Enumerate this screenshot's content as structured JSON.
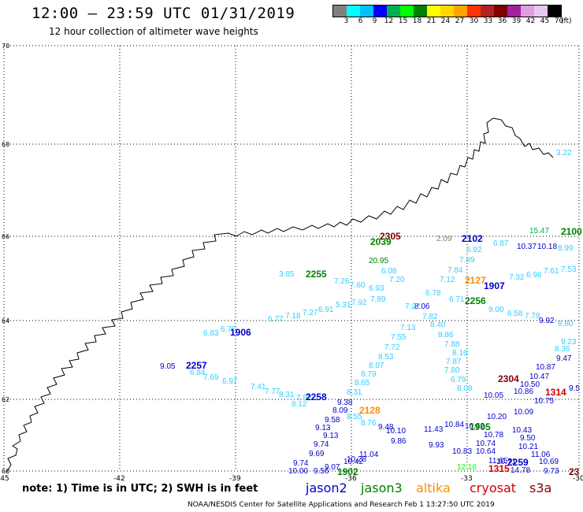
{
  "header": {
    "title": "12:00 – 23:59 UTC 01/31/2019",
    "subtitle": "12 hour collection of altimeter wave heights"
  },
  "colorbar": {
    "colors": [
      "#808080",
      "#00ffff",
      "#00bfff",
      "#0000ff",
      "#00b050",
      "#00ff00",
      "#008000",
      "#ffff00",
      "#ffd700",
      "#ffa500",
      "#ff3300",
      "#b22222",
      "#800000",
      "#a020a0",
      "#dda0dd",
      "#e6c8f0",
      "#000000"
    ],
    "labels": [
      "3",
      "6",
      "9",
      "12",
      "15",
      "18",
      "21",
      "24",
      "27",
      "30",
      "33",
      "36",
      "39",
      "42",
      "45",
      "70"
    ],
    "unit": "(ft)"
  },
  "map": {
    "lat_labels": [
      "70",
      "68",
      "66",
      "64",
      "62",
      "60"
    ],
    "lon_labels": [
      "-45",
      "-42",
      "-39",
      "-36",
      "-33",
      "-30"
    ],
    "coast_color": "#000000",
    "grid_color": "#000000"
  },
  "passes": [
    {
      "label": "1906",
      "color": "#0000cc"
    },
    {
      "label": "2257",
      "color": "#0000cc"
    },
    {
      "label": "2258",
      "color": "#0000cc"
    },
    {
      "label": "2255",
      "color": "#008000"
    },
    {
      "label": "2128",
      "color": "#ff8c00"
    },
    {
      "label": "1905",
      "color": "#008000"
    },
    {
      "label": "1902",
      "color": "#008000"
    },
    {
      "label": "2102",
      "color": "#0000cc"
    },
    {
      "label": "2305",
      "color": "#800000"
    },
    {
      "label": "2039",
      "color": "#008000"
    },
    {
      "label": "2127",
      "color": "#ff8c00"
    },
    {
      "label": "1907",
      "color": "#0000cc"
    },
    {
      "label": "2256",
      "color": "#008000"
    },
    {
      "label": "2304",
      "color": "#800000"
    },
    {
      "label": "1314",
      "color": "#cc0000"
    },
    {
      "label": "2259",
      "color": "#0000cc"
    },
    {
      "label": "1315",
      "color": "#cc0000"
    },
    {
      "label": "2100",
      "color": "#008000"
    },
    {
      "label": "23",
      "color": "#800000"
    }
  ],
  "values": [
    {
      "v": "3.22",
      "c": "#33ccff"
    },
    {
      "v": "15.47",
      "c": "#00b050"
    },
    {
      "v": "10.37",
      "c": "#0000cc"
    },
    {
      "v": "10.18",
      "c": "#0000cc"
    },
    {
      "v": "8.99",
      "c": "#33ccff"
    },
    {
      "v": "2.09",
      "c": "#808080"
    },
    {
      "v": "6.92",
      "c": "#33ccff"
    },
    {
      "v": "6.87",
      "c": "#33ccff"
    },
    {
      "v": "20.95",
      "c": "#008000"
    },
    {
      "v": "7.89",
      "c": "#33ccff"
    },
    {
      "v": "6.08",
      "c": "#33ccff"
    },
    {
      "v": "7.84",
      "c": "#33ccff"
    },
    {
      "v": "3.85",
      "c": "#33ccff"
    },
    {
      "v": "7.26",
      "c": "#33ccff"
    },
    {
      "v": "7.20",
      "c": "#33ccff"
    },
    {
      "v": "7.12",
      "c": "#33ccff"
    },
    {
      "v": "7.60",
      "c": "#33ccff"
    },
    {
      "v": "6.93",
      "c": "#33ccff"
    },
    {
      "v": "7.32",
      "c": "#33ccff"
    },
    {
      "v": "6.98",
      "c": "#33ccff"
    },
    {
      "v": "7.61",
      "c": "#33ccff"
    },
    {
      "v": "7.53",
      "c": "#33ccff"
    },
    {
      "v": "7.92",
      "c": "#33ccff"
    },
    {
      "v": "7.89",
      "c": "#33ccff"
    },
    {
      "v": "6.78",
      "c": "#33ccff"
    },
    {
      "v": "5.31",
      "c": "#33ccff"
    },
    {
      "v": "6.91",
      "c": "#33ccff"
    },
    {
      "v": "8.06",
      "c": "#0000cc"
    },
    {
      "v": "6.71",
      "c": "#33ccff"
    },
    {
      "v": "9.00",
      "c": "#33ccff"
    },
    {
      "v": "6.58",
      "c": "#33ccff"
    },
    {
      "v": "7.78",
      "c": "#33ccff"
    },
    {
      "v": "9.92",
      "c": "#0000cc"
    },
    {
      "v": "7.27",
      "c": "#33ccff"
    },
    {
      "v": "7.18",
      "c": "#33ccff"
    },
    {
      "v": "6.77",
      "c": "#33ccff"
    },
    {
      "v": "7.27",
      "c": "#33ccff"
    },
    {
      "v": "7.82",
      "c": "#33ccff"
    },
    {
      "v": "8.80",
      "c": "#33ccff"
    },
    {
      "v": "6.83",
      "c": "#33ccff"
    },
    {
      "v": "6.70",
      "c": "#33ccff"
    },
    {
      "v": "7.13",
      "c": "#33ccff"
    },
    {
      "v": "8.40",
      "c": "#33ccff"
    },
    {
      "v": "7.55",
      "c": "#33ccff"
    },
    {
      "v": "8.86",
      "c": "#33ccff"
    },
    {
      "v": "9.23",
      "c": "#33ccff"
    },
    {
      "v": "7.72",
      "c": "#33ccff"
    },
    {
      "v": "7.88",
      "c": "#33ccff"
    },
    {
      "v": "8.36",
      "c": "#33ccff"
    },
    {
      "v": "8.53",
      "c": "#33ccff"
    },
    {
      "v": "8.16",
      "c": "#33ccff"
    },
    {
      "v": "9.47",
      "c": "#0000cc"
    },
    {
      "v": "9.05",
      "c": "#0000cc"
    },
    {
      "v": "8.07",
      "c": "#33ccff"
    },
    {
      "v": "7.87",
      "c": "#33ccff"
    },
    {
      "v": "10.87",
      "c": "#0000cc"
    },
    {
      "v": "6.84",
      "c": "#33ccff"
    },
    {
      "v": "8.79",
      "c": "#33ccff"
    },
    {
      "v": "7.80",
      "c": "#33ccff"
    },
    {
      "v": "7.69",
      "c": "#33ccff"
    },
    {
      "v": "6.79",
      "c": "#33ccff"
    },
    {
      "v": "10.47",
      "c": "#0000cc"
    },
    {
      "v": "6.97",
      "c": "#33ccff"
    },
    {
      "v": "8.65",
      "c": "#33ccff"
    },
    {
      "v": "8.08",
      "c": "#33ccff"
    },
    {
      "v": "10.50",
      "c": "#0000cc"
    },
    {
      "v": "8.31",
      "c": "#33ccff"
    },
    {
      "v": "7.41",
      "c": "#33ccff"
    },
    {
      "v": "7.77",
      "c": "#33ccff"
    },
    {
      "v": "8.31",
      "c": "#33ccff"
    },
    {
      "v": "10.05",
      "c": "#0000cc"
    },
    {
      "v": "10.86",
      "c": "#0000cc"
    },
    {
      "v": "7.82",
      "c": "#33ccff"
    },
    {
      "v": "9.38",
      "c": "#0000cc"
    },
    {
      "v": "10.75",
      "c": "#0000cc"
    },
    {
      "v": "9.5",
      "c": "#0000cc"
    },
    {
      "v": "8.12",
      "c": "#33ccff"
    },
    {
      "v": "8.09",
      "c": "#0000cc"
    },
    {
      "v": "9.58",
      "c": "#0000cc"
    },
    {
      "v": "8.55",
      "c": "#33ccff"
    },
    {
      "v": "8.76",
      "c": "#33ccff"
    },
    {
      "v": "9.13",
      "c": "#0000cc"
    },
    {
      "v": "9.48",
      "c": "#0000cc"
    },
    {
      "v": "10.62",
      "c": "#0000cc"
    },
    {
      "v": "10.84",
      "c": "#0000cc"
    },
    {
      "v": "10.20",
      "c": "#0000cc"
    },
    {
      "v": "10.09",
      "c": "#0000cc"
    },
    {
      "v": "9.13",
      "c": "#0000cc"
    },
    {
      "v": "10.10",
      "c": "#0000cc"
    },
    {
      "v": "11.43",
      "c": "#0000cc"
    },
    {
      "v": "10.43",
      "c": "#0000cc"
    },
    {
      "v": "9.74",
      "c": "#0000cc"
    },
    {
      "v": "9.86",
      "c": "#0000cc"
    },
    {
      "v": "10.78",
      "c": "#0000cc"
    },
    {
      "v": "9.50",
      "c": "#0000cc"
    },
    {
      "v": "9.69",
      "c": "#0000cc"
    },
    {
      "v": "11.04",
      "c": "#0000cc"
    },
    {
      "v": "9.93",
      "c": "#0000cc"
    },
    {
      "v": "10.74",
      "c": "#0000cc"
    },
    {
      "v": "10.21",
      "c": "#0000cc"
    },
    {
      "v": "10.28",
      "c": "#0000cc"
    },
    {
      "v": "10.83",
      "c": "#0000cc"
    },
    {
      "v": "10.64",
      "c": "#0000cc"
    },
    {
      "v": "11.06",
      "c": "#0000cc"
    },
    {
      "v": "9.74",
      "c": "#0000cc"
    },
    {
      "v": "10.42",
      "c": "#0000cc"
    },
    {
      "v": "10.71",
      "c": "#0000cc"
    },
    {
      "v": "10.69",
      "c": "#0000cc"
    },
    {
      "v": "9.07",
      "c": "#0000cc"
    },
    {
      "v": "12.16",
      "c": "#00ff00"
    },
    {
      "v": "11.65",
      "c": "#0000cc"
    },
    {
      "v": "10.00",
      "c": "#0000cc"
    },
    {
      "v": "9.56",
      "c": "#0000cc"
    },
    {
      "v": "9.73",
      "c": "#0000cc"
    },
    {
      "v": "14.78",
      "c": "#0000cc"
    }
  ],
  "note": {
    "text": "note: 1) Time is in UTC; 2) SWH is in feet",
    "sats": [
      {
        "label": "jason2",
        "color": "#0000cc"
      },
      {
        "label": "jason3",
        "color": "#008000"
      },
      {
        "label": "altika",
        "color": "#ff8c00"
      },
      {
        "label": "cryosat",
        "color": "#cc0000"
      },
      {
        "label": "s3a",
        "color": "#800000"
      }
    ]
  },
  "footer": "NOAA/NESDIS Center for Satellite Applications and Research   Feb  1 13:27:50 UTC 2019"
}
